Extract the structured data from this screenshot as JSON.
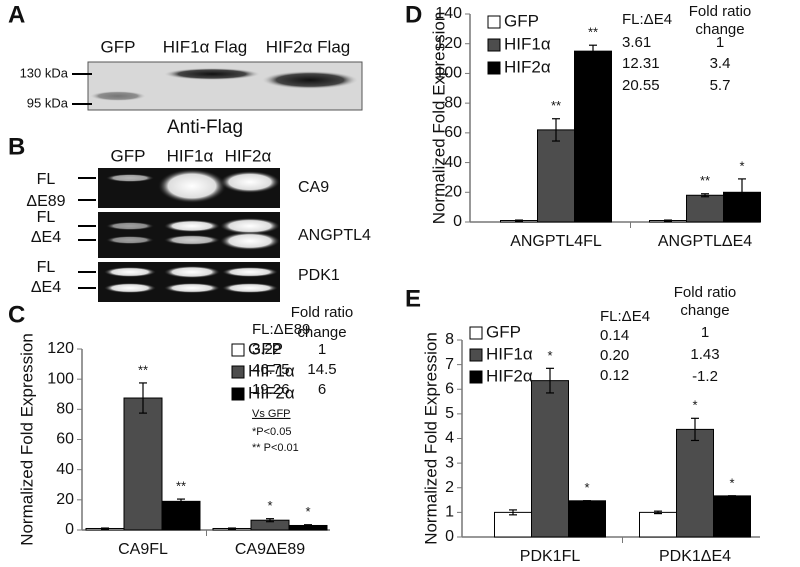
{
  "panels": {
    "A": {
      "label": "A",
      "lanes": [
        "GFP",
        "HIF1α Flag",
        "HIF2α Flag"
      ],
      "markers": [
        "130 kDa",
        "95 kDa"
      ],
      "antibody": "Anti-Flag"
    },
    "B": {
      "label": "B",
      "lanes": [
        "GFP",
        "HIF1α",
        "HIF2α"
      ],
      "gels": [
        {
          "name": "CA9",
          "bands": [
            "FL",
            "ΔE89"
          ]
        },
        {
          "name": "ANGPTL4",
          "bands": [
            "FL",
            "ΔE4"
          ]
        },
        {
          "name": "PDK1",
          "bands": [
            "FL",
            "ΔE4"
          ]
        }
      ]
    }
  },
  "chart_data": [
    {
      "type": "bar",
      "panel": "C",
      "y_label": "Normalized Fold Expression",
      "categories": [
        "CA9FL",
        "CA9ΔE89"
      ],
      "series": [
        {
          "name": "GFP",
          "color": "#ffffff",
          "values": [
            1,
            1
          ],
          "errors": [
            0.3,
            0.3
          ],
          "stars": [
            null,
            null
          ]
        },
        {
          "name": "HIF1α",
          "color": "#4d4d4d",
          "values": [
            87.5,
            6.5
          ],
          "errors": [
            10,
            1
          ],
          "stars": [
            "**",
            "*"
          ]
        },
        {
          "name": "HIF2α",
          "color": "#000000",
          "values": [
            19,
            3
          ],
          "errors": [
            1.5,
            0.5
          ],
          "stars": [
            "**",
            "*"
          ]
        }
      ],
      "ylim": [
        0,
        120
      ],
      "yticks": [
        0,
        20,
        40,
        60,
        80,
        100,
        120
      ],
      "table": {
        "ratio_header": "FL:ΔE89",
        "fold_header": [
          "Fold ratio",
          "change"
        ],
        "ratios": [
          "3.22",
          "46.75",
          "19.26"
        ],
        "folds": [
          "1",
          "14.5",
          "6"
        ]
      },
      "notes": [
        "Vs GFP",
        "*P<0.05",
        "** P<0.01"
      ]
    },
    {
      "type": "bar",
      "panel": "D",
      "y_label": "Normalized Fold Expression",
      "categories": [
        "ANGPTL4FL",
        "ANGPTLΔE4"
      ],
      "series": [
        {
          "name": "GFP",
          "color": "#ffffff",
          "values": [
            1,
            1
          ],
          "errors": [
            0.3,
            0.3
          ],
          "stars": [
            null,
            null
          ]
        },
        {
          "name": "HIF1α",
          "color": "#4d4d4d",
          "values": [
            62,
            18
          ],
          "errors": [
            7.5,
            1
          ],
          "stars": [
            "**",
            "**"
          ]
        },
        {
          "name": "HIF2α",
          "color": "#000000",
          "values": [
            115,
            20
          ],
          "errors": [
            4,
            9
          ],
          "stars": [
            "**",
            "*"
          ]
        }
      ],
      "ylim": [
        0,
        140
      ],
      "yticks": [
        0,
        20,
        40,
        60,
        80,
        100,
        120,
        140
      ],
      "table": {
        "ratio_header": "FL:ΔE4",
        "fold_header": [
          "Fold ratio",
          "change"
        ],
        "ratios": [
          "3.61",
          "12.31",
          "20.55"
        ],
        "folds": [
          "1",
          "3.4",
          "5.7"
        ]
      }
    },
    {
      "type": "bar",
      "panel": "E",
      "y_label": "Normalized Fold Expression",
      "categories": [
        "PDK1FL",
        "PDK1ΔE4"
      ],
      "series": [
        {
          "name": "GFP",
          "color": "#ffffff",
          "values": [
            1,
            1
          ],
          "errors": [
            0.1,
            0.05
          ],
          "stars": [
            null,
            null
          ]
        },
        {
          "name": "HIF1α",
          "color": "#4d4d4d",
          "values": [
            6.35,
            4.37
          ],
          "errors": [
            0.5,
            0.45
          ],
          "stars": [
            "*",
            "*"
          ]
        },
        {
          "name": "HIF2α",
          "color": "#000000",
          "values": [
            1.47,
            1.67
          ],
          "errors": [
            0,
            0
          ],
          "stars": [
            "*",
            "*"
          ]
        }
      ],
      "ylim": [
        0,
        8
      ],
      "yticks": [
        0,
        1,
        2,
        3,
        4,
        5,
        6,
        7,
        8
      ],
      "table": {
        "ratio_header": "FL:ΔE4",
        "fold_header": [
          "Fold ratio",
          "change"
        ],
        "ratios": [
          "0.14",
          "0.20",
          "0.12"
        ],
        "folds": [
          "1",
          "1.43",
          "-1.2"
        ]
      }
    }
  ]
}
